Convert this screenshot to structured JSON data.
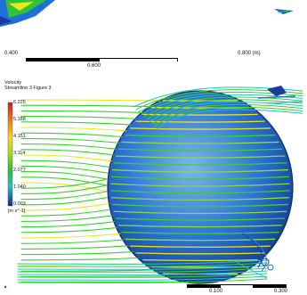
{
  "legend": {
    "title": "Velocity",
    "subtitle": "Streamline 3 Figure 3",
    "ticks": [
      "6.225",
      "5.188",
      "4.151",
      "3.114",
      "2.077",
      "1.040",
      "0.003"
    ],
    "unit": "[m s^-1]",
    "colormap": [
      "#e0161c",
      "#f77b12",
      "#ffd60f",
      "#9be00f",
      "#22c23a",
      "#19c6c0",
      "#1a78e0",
      "#1520a8"
    ]
  },
  "scales": {
    "top": {
      "left": "0.400",
      "right": "0.800 (m)",
      "middle": "0.600"
    },
    "bottom": {
      "a": "0.100",
      "b": "0.300"
    }
  },
  "colors": {
    "background": "#ffffff",
    "sphere": "#2a6ed4",
    "streamline_primary": "#34d42a",
    "streamline_fast": "#e4ea1a"
  }
}
